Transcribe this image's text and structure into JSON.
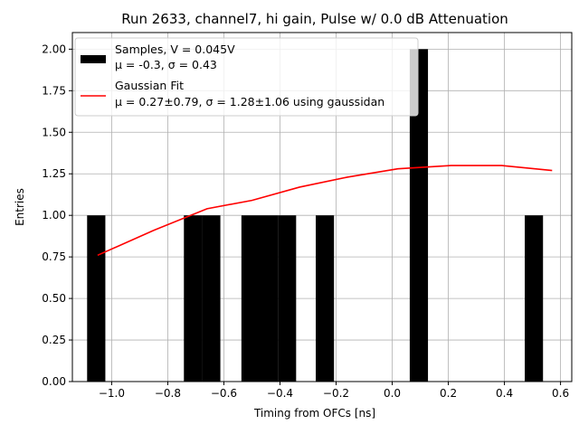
{
  "chart_data": {
    "type": "bar",
    "title": "Run 2633, channel7, hi gain, Pulse w/ 0.0 dB Attenuation",
    "xlabel": "Timing from OFCs [ns]",
    "ylabel": "Entries",
    "xlim": [
      -1.14,
      0.64
    ],
    "ylim": [
      0.0,
      2.1
    ],
    "xticks": [
      "−1.0",
      "−0.8",
      "−0.6",
      "−0.4",
      "−0.2",
      "0.0",
      "0.2",
      "0.4",
      "0.6"
    ],
    "xtick_values": [
      -1.0,
      -0.8,
      -0.6,
      -0.4,
      -0.2,
      0.0,
      0.2,
      0.4,
      0.6
    ],
    "yticks": [
      "0.00",
      "0.25",
      "0.50",
      "0.75",
      "1.00",
      "1.25",
      "1.50",
      "1.75",
      "2.00"
    ],
    "ytick_values": [
      0.0,
      0.25,
      0.5,
      0.75,
      1.0,
      1.25,
      1.5,
      1.75,
      2.0
    ],
    "grid": true,
    "legend_position": "top-left",
    "bin_width": 0.065,
    "histogram": [
      {
        "x": -1.055,
        "count": 1
      },
      {
        "x": -0.71,
        "count": 1
      },
      {
        "x": -0.645,
        "count": 1
      },
      {
        "x": -0.505,
        "count": 1
      },
      {
        "x": -0.44,
        "count": 1
      },
      {
        "x": -0.375,
        "count": 1
      },
      {
        "x": -0.24,
        "count": 1
      },
      {
        "x": 0.095,
        "count": 2
      },
      {
        "x": 0.505,
        "count": 1
      }
    ],
    "fit_curve": {
      "x": [
        -1.05,
        -0.85,
        -0.66,
        -0.5,
        -0.33,
        -0.16,
        0.02,
        0.21,
        0.39,
        0.57
      ],
      "y": [
        0.76,
        0.91,
        1.04,
        1.09,
        1.17,
        1.23,
        1.28,
        1.3,
        1.3,
        1.27
      ]
    },
    "series": [
      {
        "name": "Samples, V = 0.045V",
        "name_line2": "μ = -0.3, σ = 0.43",
        "color": "#000000"
      },
      {
        "name": "Gaussian Fit",
        "name_line2": "μ = 0.27±0.79, σ = 1.28±1.06 using gaussidan",
        "color": "#ff0000"
      }
    ]
  }
}
